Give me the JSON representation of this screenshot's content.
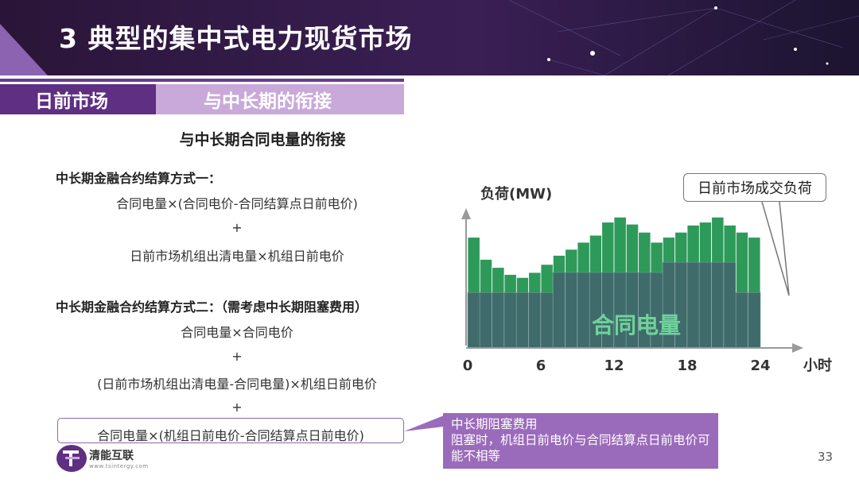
{
  "header": {
    "title": "3 典型的集中式电力现货市场"
  },
  "tabs": [
    {
      "label": "日前市场",
      "active": true
    },
    {
      "label": "与中长期的衔接",
      "active": false
    }
  ],
  "subtitle": "与中长期合同电量的衔接",
  "method_one": {
    "heading": "中长期金融合约结算方式一：",
    "line1": "合同电量×(合同电价-合同结算点日前电价)",
    "plus": "+",
    "line2": "日前市场机组出清电量×机组日前电价"
  },
  "method_two": {
    "heading": "中长期金融合约结算方式二：（需考虑中长期阻塞费用）",
    "line1": "合同电量×合同电价",
    "plus1": "+",
    "line2": "(日前市场机组出清电量-合同电量)×机组日前电价",
    "plus2": "+",
    "line3": "合同电量×(机组日前电价-合同结算点日前电价)"
  },
  "callout": {
    "title": "中长期阻塞费用",
    "body": "阻塞时，机组日前电价与合同结算点日前电价可能不相等"
  },
  "legend_box": "日前市场成交负荷",
  "logo": {
    "name": "清能互联",
    "url": "www.tsintergy.com"
  },
  "page_number": "33",
  "colors": {
    "load": "#2e9a5a",
    "contract": "#3f6b6b",
    "brand": "#5e2f82",
    "callout": "#9b6bbb"
  },
  "chart_data": {
    "type": "bar",
    "ylabel": "负荷(MW)",
    "xlabel": "小时",
    "xticks": [
      "0",
      "6",
      "12",
      "18",
      "24"
    ],
    "xlim": [
      0,
      24
    ],
    "ylim": [
      0,
      150
    ],
    "contract_label": "合同电量",
    "series": [
      {
        "name": "日前市场成交负荷",
        "values": [
          110,
          88,
          80,
          73,
          70,
          75,
          83,
          92,
          98,
          105,
          112,
          125,
          130,
          123,
          115,
          105,
          110,
          115,
          122,
          125,
          130,
          122,
          115,
          110
        ]
      },
      {
        "name": "合同电量",
        "values": [
          55,
          55,
          55,
          55,
          55,
          55,
          55,
          75,
          75,
          75,
          75,
          75,
          75,
          75,
          75,
          75,
          85,
          85,
          85,
          85,
          85,
          85,
          55,
          55
        ]
      }
    ]
  }
}
